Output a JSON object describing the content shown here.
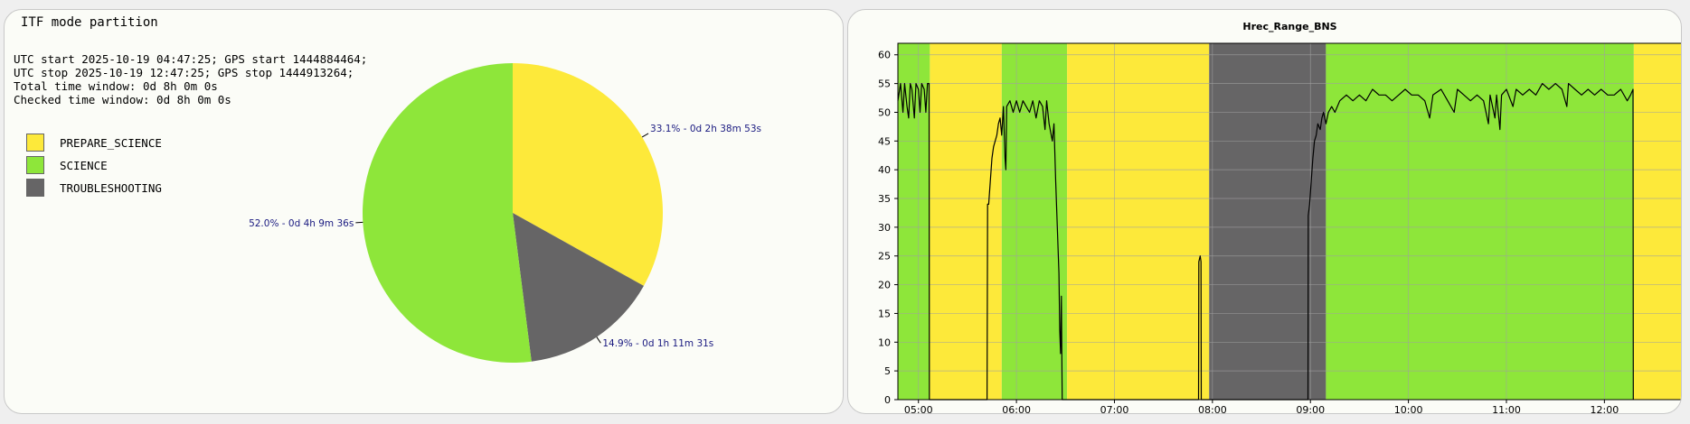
{
  "left_panel": {
    "title": "ITF mode partition",
    "info_lines": [
      "UTC start 2025-10-19 04:47:25; GPS start 1444884464;",
      "UTC stop 2025-10-19 12:47:25; GPS stop 1444913264;",
      "Total time window: 0d 8h 0m 0s",
      "Checked time window: 0d 8h 0m 0s"
    ],
    "legend": [
      {
        "label": "PREPARE_SCIENCE",
        "color": "#fde93a"
      },
      {
        "label": "SCIENCE",
        "color": "#8ee63a"
      },
      {
        "label": "TROUBLESHOOTING",
        "color": "#666566"
      }
    ]
  },
  "chart_data": [
    {
      "type": "pie",
      "title": "",
      "slices": [
        {
          "name": "PREPARE_SCIENCE",
          "value": 33.1,
          "label": "33.1% - 0d 2h 38m 53s",
          "color": "#fde93a"
        },
        {
          "name": "TROUBLESHOOTING",
          "value": 14.9,
          "label": "14.9% - 0d 1h 11m 31s",
          "color": "#666566"
        },
        {
          "name": "SCIENCE",
          "value": 52.0,
          "label": "52.0% - 0d 4h 9m 36s",
          "color": "#8ee63a"
        }
      ],
      "label_color": "#1a1a80"
    },
    {
      "type": "line",
      "title": "Hrec_Range_BNS",
      "xlabel": "",
      "ylabel": "",
      "x_range": [
        "04:47:25",
        "12:47:25"
      ],
      "xticks": [
        "05:00",
        "06:00",
        "07:00",
        "08:00",
        "09:00",
        "10:00",
        "11:00",
        "12:00"
      ],
      "ylim": [
        0,
        62
      ],
      "yticks": [
        0,
        5,
        10,
        15,
        20,
        25,
        30,
        35,
        40,
        45,
        50,
        55,
        60
      ],
      "grid": true,
      "background_bands": [
        {
          "start": "04:47:25",
          "end": "05:07:00",
          "mode": "SCIENCE",
          "color": "#8ee63a"
        },
        {
          "start": "05:07:00",
          "end": "05:51:00",
          "mode": "PREPARE_SCIENCE",
          "color": "#fde93a"
        },
        {
          "start": "05:51:00",
          "end": "06:31:00",
          "mode": "SCIENCE",
          "color": "#8ee63a"
        },
        {
          "start": "06:31:00",
          "end": "07:58:00",
          "mode": "PREPARE_SCIENCE",
          "color": "#fde93a"
        },
        {
          "start": "07:58:00",
          "end": "09:09:30",
          "mode": "TROUBLESHOOTING",
          "color": "#666566"
        },
        {
          "start": "09:09:30",
          "end": "12:18:00",
          "mode": "SCIENCE",
          "color": "#8ee63a"
        },
        {
          "start": "12:18:00",
          "end": "12:47:25",
          "mode": "PREPARE_SCIENCE",
          "color": "#fde93a"
        }
      ],
      "series": [
        {
          "color": "#000000",
          "points": [
            [
              "04:47:25",
              52
            ],
            [
              "04:49:00",
              55
            ],
            [
              "04:50:30",
              50
            ],
            [
              "04:51:30",
              55
            ],
            [
              "04:53:00",
              51
            ],
            [
              "04:54:00",
              49
            ],
            [
              "04:55:00",
              55
            ],
            [
              "04:56:00",
              54
            ],
            [
              "04:57:30",
              49
            ],
            [
              "04:58:30",
              55
            ],
            [
              "05:00:00",
              54
            ],
            [
              "05:01:00",
              50
            ],
            [
              "05:02:00",
              55
            ],
            [
              "05:03:30",
              54
            ],
            [
              "05:04:30",
              50
            ],
            [
              "05:05:30",
              55
            ],
            [
              "05:06:30",
              55
            ],
            [
              "05:06:40",
              0
            ],
            [
              "05:42:00",
              0
            ],
            [
              "05:42:20",
              34
            ],
            [
              "05:43:00",
              34
            ],
            [
              "05:44:00",
              38
            ],
            [
              "05:45:00",
              42
            ],
            [
              "05:46:00",
              44
            ],
            [
              "05:47:00",
              45
            ],
            [
              "05:48:00",
              46
            ],
            [
              "05:49:00",
              48
            ],
            [
              "05:50:00",
              49
            ],
            [
              "05:51:00",
              46
            ],
            [
              "05:52:00",
              51
            ],
            [
              "05:53:00",
              42
            ],
            [
              "05:53:30",
              40
            ],
            [
              "05:54:00",
              51
            ],
            [
              "05:56:00",
              52
            ],
            [
              "05:58:00",
              50
            ],
            [
              "06:00:00",
              52
            ],
            [
              "06:02:00",
              50
            ],
            [
              "06:04:00",
              52
            ],
            [
              "06:06:00",
              51
            ],
            [
              "06:08:00",
              50
            ],
            [
              "06:10:00",
              52
            ],
            [
              "06:12:00",
              49
            ],
            [
              "06:14:00",
              52
            ],
            [
              "06:16:00",
              51
            ],
            [
              "06:17:30",
              47
            ],
            [
              "06:18:30",
              52
            ],
            [
              "06:20:00",
              48
            ],
            [
              "06:22:00",
              45
            ],
            [
              "06:23:00",
              48
            ],
            [
              "06:24:00",
              38
            ],
            [
              "06:25:00",
              30
            ],
            [
              "06:26:00",
              22
            ],
            [
              "06:26:30",
              12
            ],
            [
              "06:27:00",
              8
            ],
            [
              "06:27:30",
              18
            ],
            [
              "06:28:00",
              0
            ],
            [
              "07:51:30",
              0
            ],
            [
              "07:51:40",
              24
            ],
            [
              "07:52:30",
              25
            ],
            [
              "07:53:00",
              24
            ],
            [
              "07:53:10",
              0
            ],
            [
              "08:58:30",
              0
            ],
            [
              "08:58:40",
              32
            ],
            [
              "08:59:30",
              34
            ],
            [
              "09:00:30",
              38
            ],
            [
              "09:01:30",
              42
            ],
            [
              "09:02:30",
              45
            ],
            [
              "09:03:30",
              46
            ],
            [
              "09:04:30",
              48
            ],
            [
              "09:06:00",
              47
            ],
            [
              "09:07:00",
              49
            ],
            [
              "09:08:00",
              50
            ],
            [
              "09:09:30",
              48
            ],
            [
              "09:11:00",
              50
            ],
            [
              "09:13:00",
              51
            ],
            [
              "09:15:00",
              50
            ],
            [
              "09:18:00",
              52
            ],
            [
              "09:22:00",
              53
            ],
            [
              "09:26:00",
              52
            ],
            [
              "09:30:00",
              53
            ],
            [
              "09:34:00",
              52
            ],
            [
              "09:38:00",
              54
            ],
            [
              "09:42:00",
              53
            ],
            [
              "09:46:00",
              53
            ],
            [
              "09:50:00",
              52
            ],
            [
              "09:54:00",
              53
            ],
            [
              "09:58:00",
              54
            ],
            [
              "10:02:00",
              53
            ],
            [
              "10:06:00",
              53
            ],
            [
              "10:10:00",
              52
            ],
            [
              "10:13:00",
              49
            ],
            [
              "10:15:00",
              53
            ],
            [
              "10:20:00",
              54
            ],
            [
              "10:24:00",
              52
            ],
            [
              "10:28:00",
              50
            ],
            [
              "10:30:00",
              54
            ],
            [
              "10:34:00",
              53
            ],
            [
              "10:38:00",
              52
            ],
            [
              "10:42:00",
              53
            ],
            [
              "10:46:00",
              52
            ],
            [
              "10:49:00",
              48
            ],
            [
              "10:50:00",
              53
            ],
            [
              "10:53:00",
              49
            ],
            [
              "10:54:00",
              53
            ],
            [
              "10:56:00",
              47
            ],
            [
              "10:57:00",
              53
            ],
            [
              "11:00:00",
              54
            ],
            [
              "11:04:00",
              51
            ],
            [
              "11:06:00",
              54
            ],
            [
              "11:10:00",
              53
            ],
            [
              "11:14:00",
              54
            ],
            [
              "11:18:00",
              53
            ],
            [
              "11:22:00",
              55
            ],
            [
              "11:26:00",
              54
            ],
            [
              "11:30:00",
              55
            ],
            [
              "11:34:00",
              54
            ],
            [
              "11:37:00",
              51
            ],
            [
              "11:38:00",
              55
            ],
            [
              "11:42:00",
              54
            ],
            [
              "11:46:00",
              53
            ],
            [
              "11:50:00",
              54
            ],
            [
              "11:54:00",
              53
            ],
            [
              "11:58:00",
              54
            ],
            [
              "12:02:00",
              53
            ],
            [
              "12:06:00",
              53
            ],
            [
              "12:10:00",
              54
            ],
            [
              "12:14:00",
              52
            ],
            [
              "12:16:00",
              53
            ],
            [
              "12:17:30",
              54
            ],
            [
              "12:17:40",
              0
            ]
          ]
        }
      ]
    }
  ]
}
